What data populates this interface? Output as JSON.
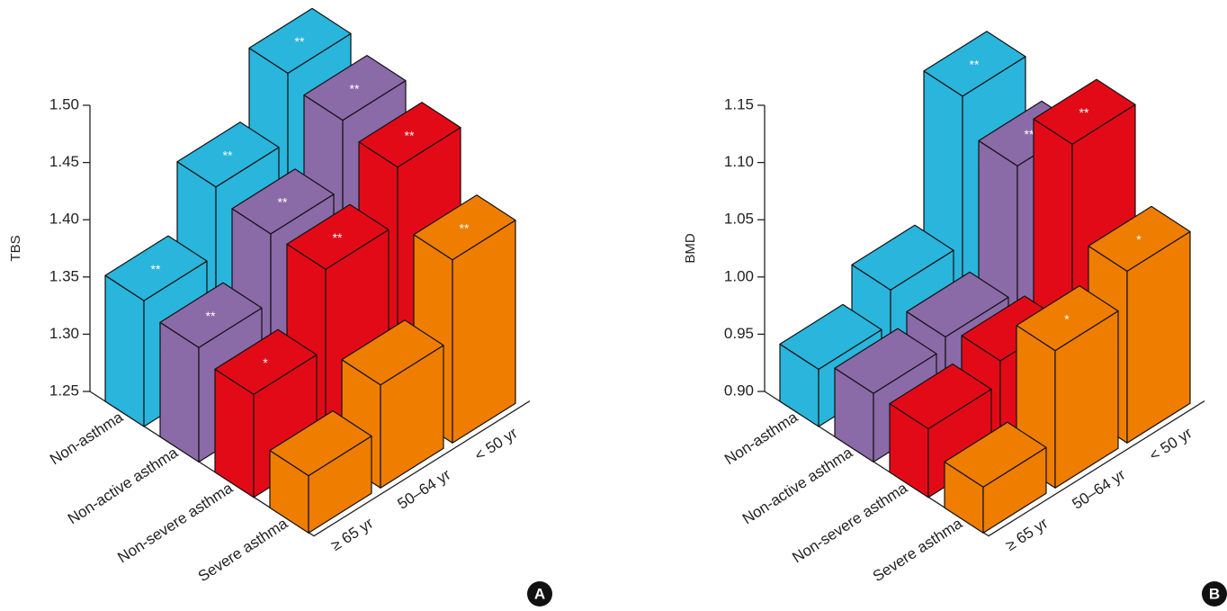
{
  "chart_data": [
    {
      "type": "bar3d",
      "y_label": "TBS",
      "panel_label": "A",
      "categories": [
        "≥ 65 yr",
        "50–64 yr",
        "< 50 yr"
      ],
      "series": [
        {
          "name": "Non-asthma",
          "color": "#29b5dc",
          "values": [
            1.36,
            1.42,
            1.48
          ],
          "annotations": [
            "**",
            "**",
            "**"
          ]
        },
        {
          "name": "Non-active asthma",
          "color": "#8b6aa8",
          "values": [
            1.35,
            1.41,
            1.47
          ],
          "annotations": [
            "**",
            "**",
            "**"
          ]
        },
        {
          "name": "Non-severe asthma",
          "color": "#e30a17",
          "values": [
            1.34,
            1.41,
            1.46
          ],
          "annotations": [
            "*",
            "**",
            "**"
          ]
        },
        {
          "name": "Severe asthma",
          "color": "#ef7d00",
          "values": [
            1.3,
            1.34,
            1.41
          ],
          "annotations": [
            null,
            null,
            "**"
          ]
        }
      ],
      "ylim": [
        1.25,
        1.5
      ],
      "yticks": [
        1.25,
        {
          "value": 1.3,
          "label": "1.30"
        },
        1.35,
        {
          "value": 1.4,
          "label": "1.40"
        },
        1.45,
        {
          "value": 1.5,
          "label": "1.50"
        }
      ]
    },
    {
      "type": "bar3d",
      "y_label": "BMD",
      "panel_label": "B",
      "categories": [
        "≥ 65 yr",
        "50–64 yr",
        "< 50 yr"
      ],
      "series": [
        {
          "name": "Non-asthma",
          "color": "#29b5dc",
          "values": [
            0.95,
            0.98,
            1.11
          ],
          "annotations": [
            null,
            null,
            "**"
          ]
        },
        {
          "name": "Non-active asthma",
          "color": "#8b6aa8",
          "values": [
            0.96,
            0.97,
            1.08
          ],
          "annotations": [
            null,
            null,
            "**"
          ]
        },
        {
          "name": "Non-severe asthma",
          "color": "#e30a17",
          "values": [
            0.96,
            0.98,
            1.13
          ],
          "annotations": [
            null,
            null,
            "**"
          ]
        },
        {
          "name": "Severe asthma",
          "color": "#ef7d00",
          "values": [
            0.94,
            1.02,
            1.05
          ],
          "annotations": [
            null,
            "*",
            "*"
          ]
        }
      ],
      "ylim": [
        0.9,
        1.15
      ],
      "yticks": [
        {
          "value": 0.9,
          "label": "0.90"
        },
        0.95,
        {
          "value": 1.0,
          "label": "1.00"
        },
        1.05,
        {
          "value": 1.1,
          "label": "1.10"
        },
        1.15
      ]
    }
  ]
}
